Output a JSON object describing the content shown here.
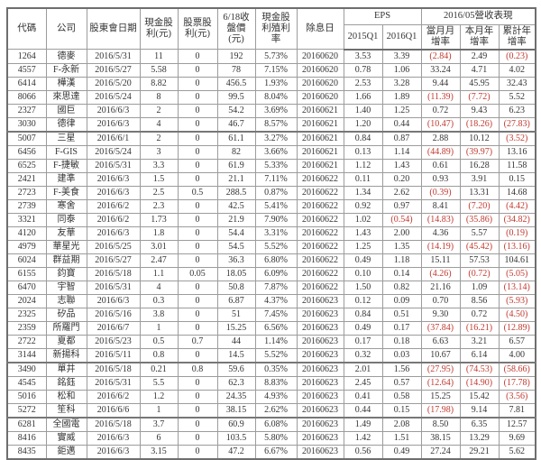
{
  "chart_data": {
    "type": "table",
    "title": "",
    "group_headers": {
      "eps": "EPS",
      "revenue": "2016/05營收表現"
    },
    "columns": [
      "代碼",
      "公司",
      "股東會日期",
      "現金股利(元)",
      "股票股利(元)",
      "6/18收盤價(元)",
      "現金股利殖利率",
      "除息日",
      "2015Q1",
      "2016Q1",
      "當月月增率",
      "本月年增率",
      "累計年增率"
    ],
    "rows": [
      [
        "1264",
        "德麥",
        "2016/5/31",
        "11",
        "0",
        "192",
        "5.73%",
        "20160620",
        "3.53",
        "3.39",
        "(2.84)",
        "2.49",
        "(0.23)"
      ],
      [
        "4557",
        "F-永新",
        "2016/5/27",
        "5.58",
        "0",
        "78",
        "7.15%",
        "20160620",
        "0.78",
        "1.06",
        "33.24",
        "4.71",
        "4.02"
      ],
      [
        "6414",
        "樺漢",
        "2016/5/20",
        "8.82",
        "0",
        "456.5",
        "1.93%",
        "20160620",
        "2.53",
        "3.28",
        "9.44",
        "45.95",
        "32.43"
      ],
      [
        "8066",
        "來思達",
        "2016/5/24",
        "8",
        "0",
        "99.5",
        "8.04%",
        "20160620",
        "1.66",
        "1.89",
        "(11.39)",
        "(7.72)",
        "5.52"
      ],
      [
        "2327",
        "國巨",
        "2016/6/3",
        "2",
        "0",
        "54.2",
        "3.69%",
        "20160621",
        "1.40",
        "1.25",
        "0.72",
        "9.43",
        "6.23"
      ],
      [
        "3030",
        "德律",
        "2016/6/3",
        "4",
        "0",
        "46.7",
        "8.57%",
        "20160621",
        "1.20",
        "0.44",
        "(10.47)",
        "(18.26)",
        "(27.83)"
      ],
      [
        "5007",
        "三星",
        "2016/6/1",
        "2",
        "0",
        "61.1",
        "3.27%",
        "20160621",
        "0.84",
        "0.87",
        "2.88",
        "10.12",
        "(3.52)"
      ],
      [
        "6456",
        "F-GIS",
        "2016/5/24",
        "3",
        "0",
        "82",
        "3.66%",
        "20160621",
        "0.13",
        "1.14",
        "(44.89)",
        "(39.97)",
        "13.16"
      ],
      [
        "6525",
        "F-捷敏",
        "2016/5/31",
        "3.3",
        "0",
        "61.9",
        "5.33%",
        "20160621",
        "1.12",
        "1.43",
        "0.61",
        "16.28",
        "11.58"
      ],
      [
        "2421",
        "建準",
        "2016/6/3",
        "1.5",
        "0",
        "21.1",
        "7.11%",
        "20160622",
        "0.11",
        "0.20",
        "0.93",
        "3.91",
        "0.15"
      ],
      [
        "2723",
        "F-美食",
        "2016/6/3",
        "2.5",
        "0.5",
        "288.5",
        "0.87%",
        "20160622",
        "1.34",
        "2.62",
        "(0.39)",
        "13.31",
        "14.68"
      ],
      [
        "2739",
        "寒舍",
        "2016/6/2",
        "2.3",
        "0",
        "42.5",
        "5.41%",
        "20160622",
        "0.92",
        "0.97",
        "8.41",
        "(7.20)",
        "(4.42)"
      ],
      [
        "3321",
        "同泰",
        "2016/6/2",
        "1.73",
        "0",
        "21.9",
        "7.90%",
        "20160622",
        "1.02",
        "(0.54)",
        "(14.83)",
        "(35.86)",
        "(34.82)"
      ],
      [
        "4120",
        "友華",
        "2016/6/3",
        "1.8",
        "0",
        "54.4",
        "3.31%",
        "20160622",
        "1.43",
        "2.00",
        "4.36",
        "5.57",
        "(0.19)"
      ],
      [
        "4979",
        "華星光",
        "2016/5/25",
        "3.01",
        "0",
        "54.5",
        "5.52%",
        "20160622",
        "1.25",
        "1.35",
        "(14.19)",
        "(45.42)",
        "(13.16)"
      ],
      [
        "6024",
        "群益期",
        "2016/5/27",
        "2.47",
        "0",
        "36.3",
        "6.80%",
        "20160622",
        "0.49",
        "1.18",
        "15.11",
        "57.53",
        "104.61"
      ],
      [
        "6155",
        "鈞寶",
        "2016/5/18",
        "1.1",
        "0.05",
        "18.05",
        "6.09%",
        "20160622",
        "0.10",
        "0.14",
        "(4.26)",
        "(0.72)",
        "(5.05)"
      ],
      [
        "6470",
        "宇智",
        "2016/5/31",
        "4",
        "0",
        "50.8",
        "7.87%",
        "20160622",
        "1.50",
        "0.82",
        "21.16",
        "1.09",
        "(13.14)"
      ],
      [
        "2024",
        "志聯",
        "2016/6/3",
        "0.3",
        "0",
        "6.87",
        "4.37%",
        "20160623",
        "0.12",
        "0.09",
        "0.70",
        "8.56",
        "(5.93)"
      ],
      [
        "2325",
        "矽品",
        "2016/5/16",
        "3.8",
        "0",
        "51",
        "7.45%",
        "20160623",
        "0.84",
        "0.51",
        "9.30",
        "0.72",
        "(4.50)"
      ],
      [
        "2359",
        "所羅門",
        "2016/6/7",
        "1",
        "0",
        "15.25",
        "6.56%",
        "20160623",
        "0.49",
        "0.17",
        "(37.84)",
        "(16.21)",
        "(12.89)"
      ],
      [
        "2722",
        "夏都",
        "2016/5/23",
        "0.5",
        "0.7",
        "44",
        "1.14%",
        "20160623",
        "0.17",
        "0.18",
        "6.63",
        "3.21",
        "6.57"
      ],
      [
        "3144",
        "新揚科",
        "2016/5/11",
        "0.8",
        "0",
        "14.5",
        "5.52%",
        "20160623",
        "0.32",
        "0.03",
        "10.67",
        "6.14",
        "4.00"
      ],
      [
        "3490",
        "單井",
        "2016/5/18",
        "0.21",
        "0.8",
        "59.6",
        "0.35%",
        "20160623",
        "2.01",
        "1.56",
        "(27.95)",
        "(74.53)",
        "(58.66)"
      ],
      [
        "4545",
        "銘鈺",
        "2016/5/31",
        "5.5",
        "0",
        "62.3",
        "8.83%",
        "20160623",
        "2.45",
        "0.57",
        "(12.64)",
        "(14.90)",
        "(17.78)"
      ],
      [
        "5016",
        "松和",
        "2016/6/2",
        "1.2",
        "0",
        "24.35",
        "4.93%",
        "20160623",
        "0.41",
        "0.58",
        "15.25",
        "15.42",
        "(3.56)"
      ],
      [
        "5272",
        "笙科",
        "2016/6/6",
        "1",
        "0",
        "38.15",
        "2.62%",
        "20160623",
        "0.44",
        "0.15",
        "(17.98)",
        "9.14",
        "7.81"
      ],
      [
        "6281",
        "全國電",
        "2016/5/18",
        "3.7",
        "0",
        "60.9",
        "6.08%",
        "20160623",
        "1.49",
        "2.08",
        "8.50",
        "6.35",
        "12.57"
      ],
      [
        "8416",
        "實威",
        "2016/6/3",
        "6",
        "0",
        "103.5",
        "5.80%",
        "20160623",
        "1.42",
        "1.51",
        "38.15",
        "13.29",
        "9.69"
      ],
      [
        "8435",
        "鉅邁",
        "2016/6/3",
        "3.15",
        "0",
        "47.2",
        "6.67%",
        "20160623",
        "0.56",
        "0.49",
        "27.24",
        "29.21",
        "5.62"
      ]
    ]
  },
  "colors": {
    "text": "#333333",
    "negative": "#c03a30",
    "border": "#9c9c9c",
    "outer_border": "#6e6e6e",
    "background": "#ffffff"
  }
}
